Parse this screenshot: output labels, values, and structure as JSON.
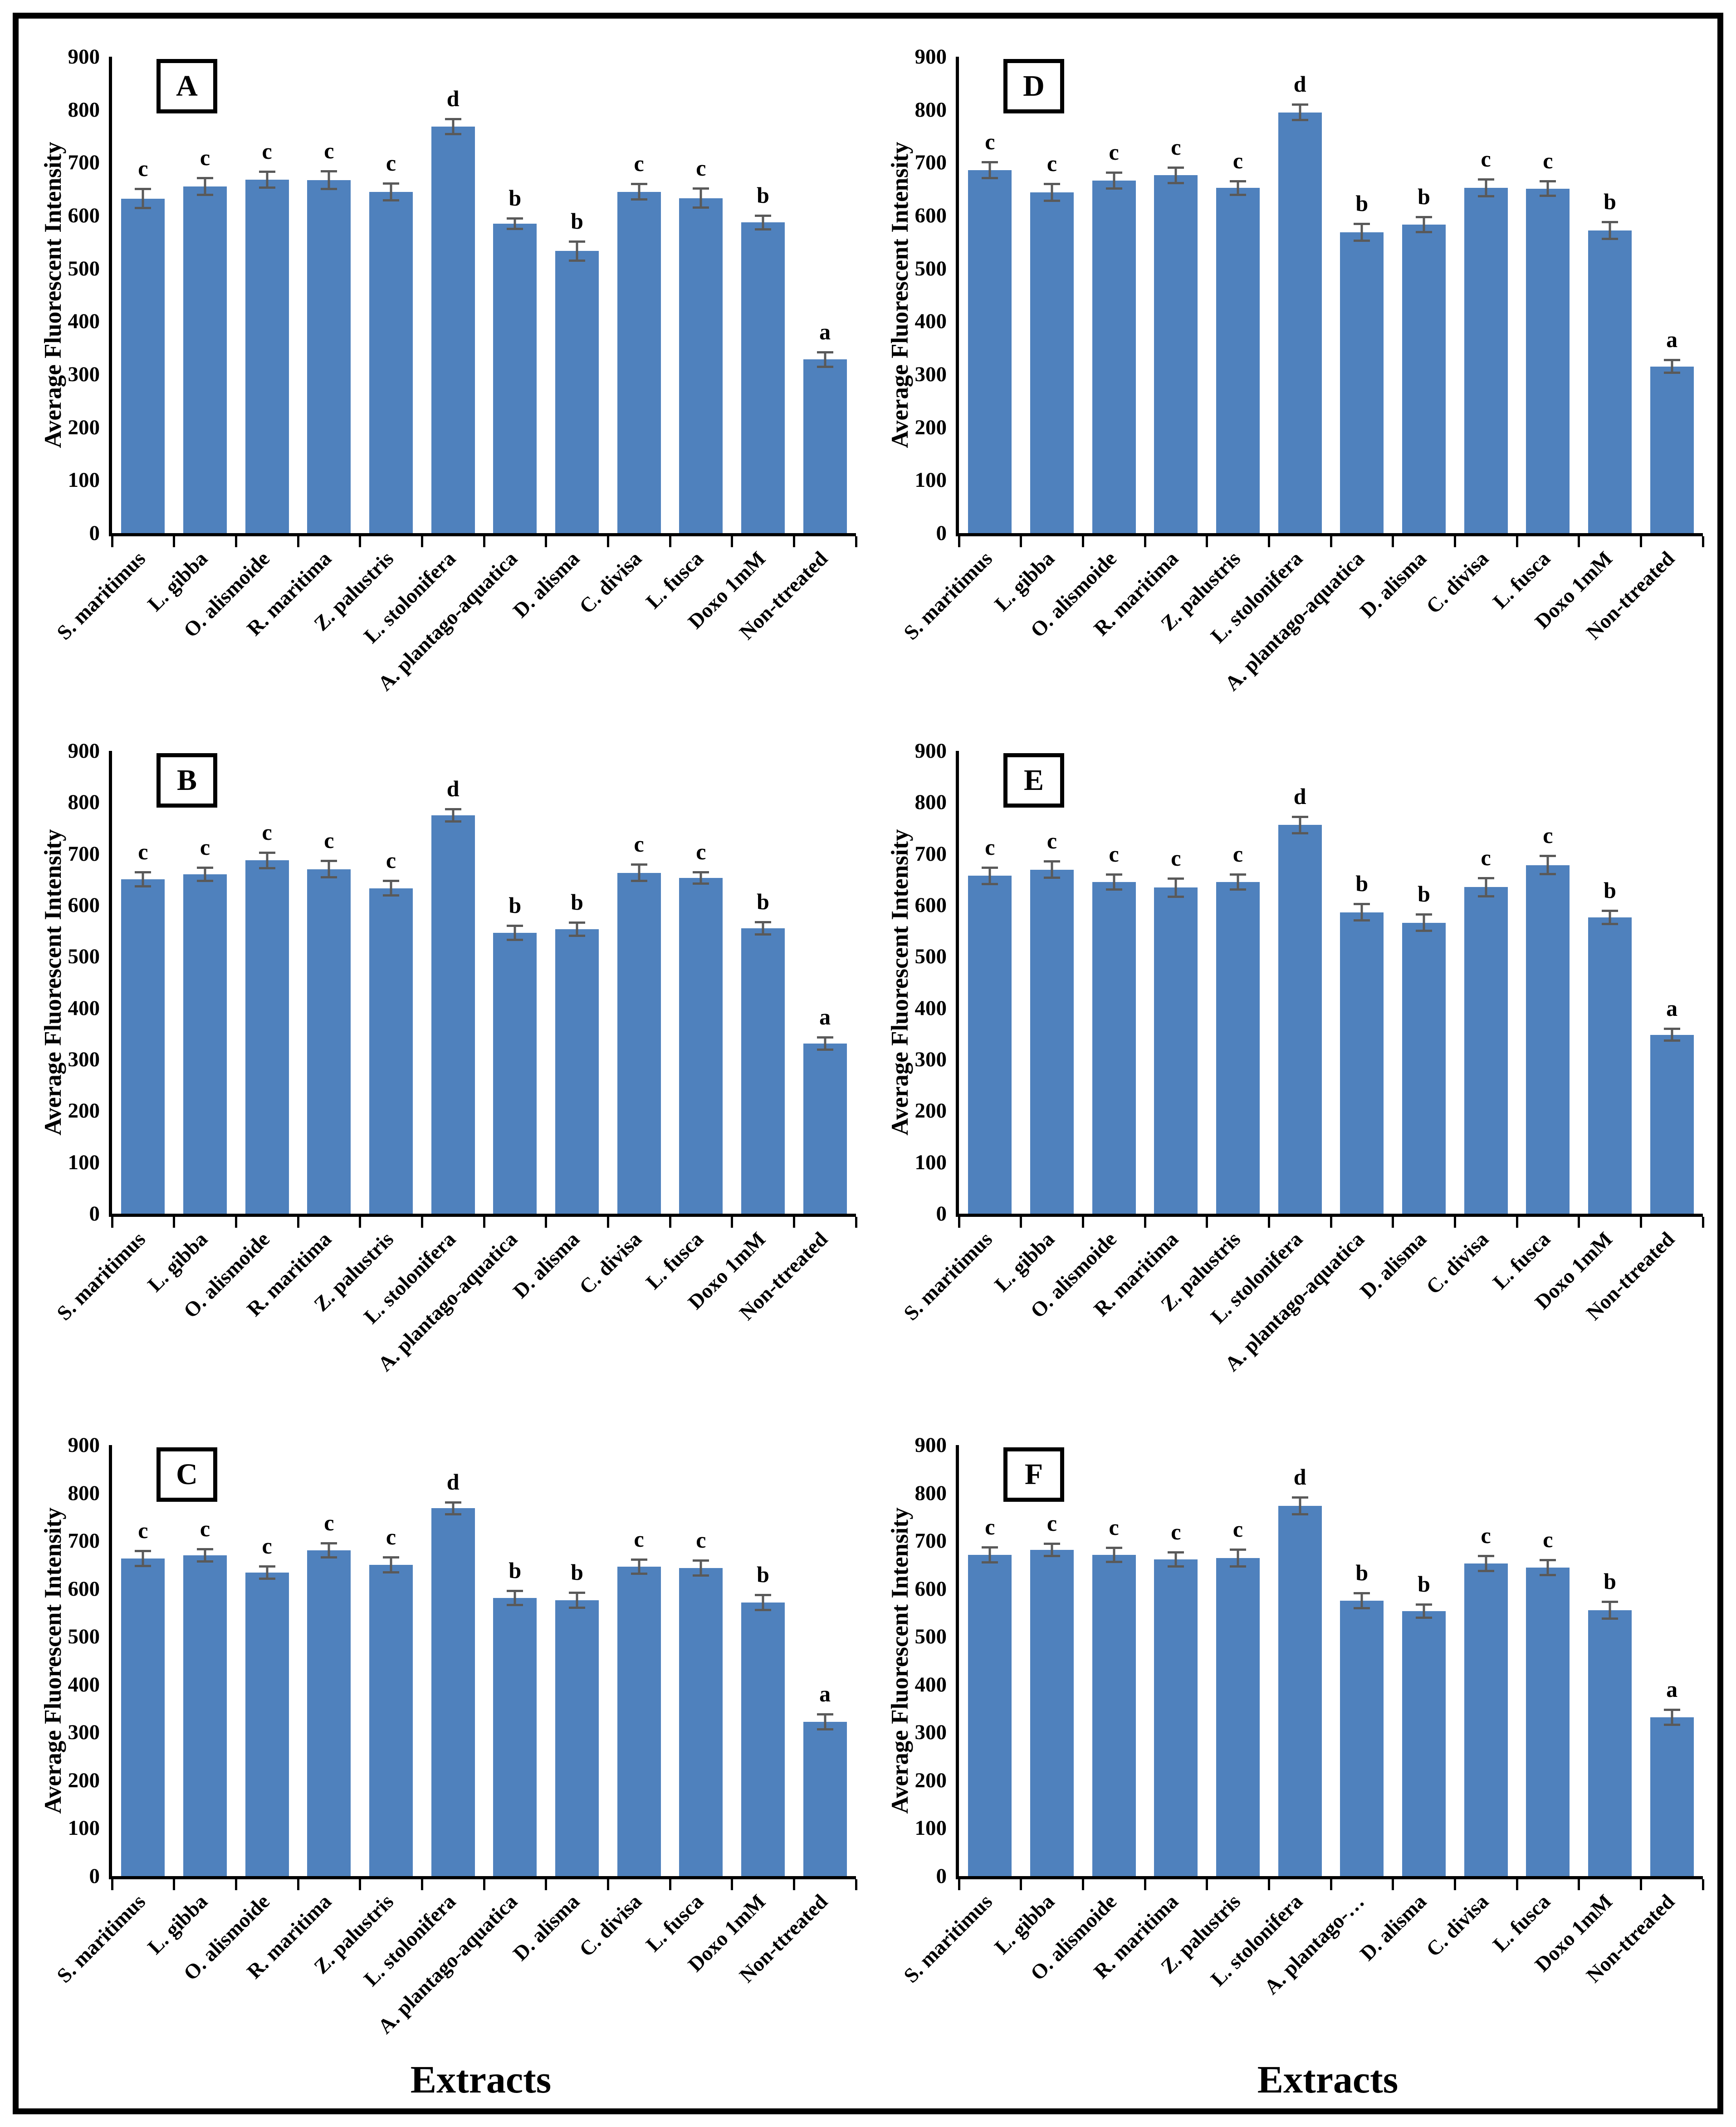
{
  "figure": {
    "y_axis_title": "Average Fluorescent Intensity",
    "x_axis_title": "Extracts",
    "y_ticks": [
      "900",
      "800",
      "700",
      "600",
      "500",
      "400",
      "300",
      "200",
      "100",
      "0"
    ],
    "bar_color": "#4F81BD",
    "error_bar_color": "#595959",
    "categories": [
      "S. maritimus",
      "L. gibba",
      "O. alismoide",
      "R. maritima",
      "Z. palustris",
      "L. stolonifera",
      "A. plantago-aquatica",
      "D. alisma",
      "C. divisa",
      "L. fusca",
      "Doxo 1mM",
      "Non-ttreated"
    ],
    "panel_letters": [
      "A",
      "D",
      "B",
      "E",
      "C",
      "F"
    ]
  },
  "chart_data": [
    {
      "type": "bar",
      "panel": "A",
      "ylim": [
        0,
        900
      ],
      "ylabel": "Average Fluorescent Intensity",
      "xlabel": "",
      "display_categories": [
        "S. maritimus",
        "L. gibba",
        "O. alismoide",
        "R. maritima",
        "Z. palustris",
        "L. stolonifera",
        "A. plantago-aquatica",
        "D. alisma",
        "C. divisa",
        "L. fusca",
        "Doxo 1mM",
        "Non-ttreated"
      ],
      "values": [
        632,
        655,
        668,
        667,
        645,
        768,
        585,
        533,
        645,
        633,
        587,
        328
      ],
      "errors": [
        20,
        18,
        17,
        19,
        18,
        16,
        12,
        20,
        17,
        20,
        15,
        16
      ],
      "sig_letters": [
        "c",
        "c",
        "c",
        "c",
        "c",
        "d",
        "b",
        "b",
        "c",
        "c",
        "b",
        "a"
      ]
    },
    {
      "type": "bar",
      "panel": "D",
      "ylim": [
        0,
        900
      ],
      "ylabel": "Average Fluorescent Intensity",
      "xlabel": "",
      "display_categories": [
        "S. maritimus",
        "L. gibba",
        "O. alismoide",
        "R. maritima",
        "Z. palustris",
        "L. stolonifera",
        "A. plantago-aquatica",
        "D. alisma",
        "C. divisa",
        "L. fusca",
        "Doxo 1mM",
        "Non-ttreated"
      ],
      "values": [
        686,
        644,
        666,
        676,
        652,
        795,
        568,
        583,
        652,
        651,
        572,
        315
      ],
      "errors": [
        17,
        18,
        17,
        17,
        15,
        17,
        18,
        16,
        18,
        16,
        18,
        14
      ],
      "sig_letters": [
        "c",
        "c",
        "c",
        "c",
        "c",
        "d",
        "b",
        "b",
        "c",
        "c",
        "b",
        "a"
      ]
    },
    {
      "type": "bar",
      "panel": "B",
      "ylim": [
        0,
        900
      ],
      "ylabel": "Average Fluorescent Intensity",
      "xlabel": "",
      "display_categories": [
        "S. maritimus",
        "L. gibba",
        "O. alismoide",
        "R. maritima",
        "Z. palustris",
        "L. stolonifera",
        "A. plantago-aquatica",
        "D. alisma",
        "C. divisa",
        "L. fusca",
        "Doxo 1mM",
        "Non-ttreated"
      ],
      "values": [
        650,
        660,
        687,
        670,
        633,
        775,
        546,
        553,
        663,
        653,
        555,
        331
      ],
      "errors": [
        16,
        15,
        17,
        18,
        16,
        14,
        16,
        15,
        18,
        13,
        14,
        14
      ],
      "sig_letters": [
        "c",
        "c",
        "c",
        "c",
        "c",
        "d",
        "b",
        "b",
        "c",
        "c",
        "b",
        "a"
      ]
    },
    {
      "type": "bar",
      "panel": "E",
      "ylim": [
        0,
        900
      ],
      "ylabel": "Average Fluorescent Intensity",
      "xlabel": "",
      "display_categories": [
        "S. maritimus",
        "L. gibba",
        "O. alismoide",
        "R. maritima",
        "Z. palustris",
        "L. stolonifera",
        "A. plantago-aquatica",
        "D. alisma",
        "C. divisa",
        "L. fusca",
        "Doxo 1mM",
        "Non-ttreated"
      ],
      "values": [
        657,
        669,
        645,
        634,
        645,
        756,
        586,
        566,
        635,
        678,
        576,
        348
      ],
      "errors": [
        18,
        18,
        17,
        20,
        17,
        18,
        18,
        18,
        20,
        20,
        15,
        14
      ],
      "sig_letters": [
        "c",
        "c",
        "c",
        "c",
        "c",
        "d",
        "b",
        "b",
        "c",
        "c",
        "b",
        "a"
      ]
    },
    {
      "type": "bar",
      "panel": "C",
      "ylim": [
        0,
        900
      ],
      "ylabel": "Average Fluorescent Intensity",
      "xlabel": "Extracts",
      "display_categories": [
        "S. maritimus",
        "L. gibba",
        "O. alismoide",
        "R. maritima",
        "Z. palustris",
        "L. stolonifera",
        "A. plantago-aquatica",
        "D. alisma",
        "C. divisa",
        "L. fusca",
        "Doxo 1mM",
        "Non-ttreated"
      ],
      "values": [
        663,
        670,
        634,
        680,
        650,
        768,
        581,
        576,
        646,
        643,
        571,
        322
      ],
      "errors": [
        18,
        15,
        15,
        17,
        18,
        15,
        17,
        18,
        17,
        18,
        18,
        18
      ],
      "sig_letters": [
        "c",
        "c",
        "c",
        "c",
        "c",
        "d",
        "b",
        "b",
        "c",
        "c",
        "b",
        "a"
      ]
    },
    {
      "type": "bar",
      "panel": "F",
      "ylim": [
        0,
        900
      ],
      "ylabel": "Average Fluorescent Intensity",
      "xlabel": "Extracts",
      "display_categories": [
        "S. maritimus",
        "L. gibba",
        "O. alismoide",
        "R. maritima",
        "Z. palustris",
        "L. stolonifera",
        "A. plantago-…",
        "D. alisma",
        "C. divisa",
        "L. fusca",
        "Doxo 1mM",
        "Non-ttreated"
      ],
      "values": [
        671,
        681,
        671,
        661,
        664,
        773,
        575,
        553,
        653,
        644,
        555,
        332
      ],
      "errors": [
        18,
        15,
        17,
        17,
        20,
        20,
        18,
        16,
        18,
        18,
        20,
        18
      ],
      "sig_letters": [
        "c",
        "c",
        "c",
        "c",
        "c",
        "d",
        "b",
        "b",
        "c",
        "c",
        "b",
        "a"
      ]
    }
  ]
}
